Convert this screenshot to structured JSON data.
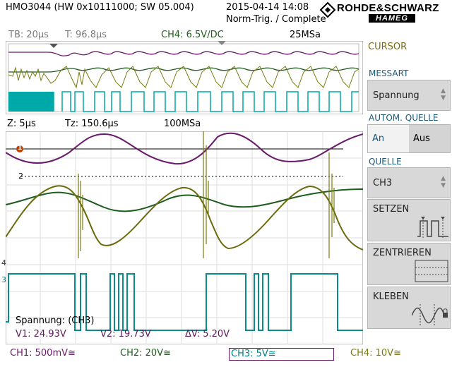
{
  "header": {
    "device": "HMO3044 (HW 0x10111000; SW 05.004)",
    "datetime": "2015-04-14 14:08",
    "trigger_status": "Norm-Trig. / Complete",
    "brand_top": "ROHDE&SCHWARZ",
    "brand_bottom": "HAMEG"
  },
  "overview": {
    "timebase": "TB: 20µs",
    "trigger_time": "T: 96.8µs",
    "trigger_source": "CH4: 6.5V/DC",
    "sample_rate": "25MSa"
  },
  "zoom": {
    "timebase": "Z: 5µs",
    "zoom_time": "Tz: 150.6µs",
    "sample_rate": "100MSa"
  },
  "markers": {
    "ref1": "1",
    "ch2": "2",
    "ch4": "4",
    "ch3": "3"
  },
  "measurement": {
    "title": "Spannung: (CH3)",
    "v1": "V1: 24.93V",
    "v2": "V2: 19.73V",
    "dv": "ΔV: 5.20V"
  },
  "side_menu": {
    "title": "CURSOR",
    "messart_label": "MESSART",
    "messart_value": "Spannung",
    "autom_label": "AUTOM. QUELLE",
    "autom_on": "An",
    "autom_off": "Aus",
    "quelle_label": "QUELLE",
    "quelle_value": "CH3",
    "setzen": "SETZEN",
    "zentrieren": "ZENTRIEREN",
    "kleben": "KLEBEN"
  },
  "footer": {
    "ch1": "CH1: 500mV≅",
    "ch2": "CH2: 20V≅",
    "ch3": "CH3: 5V≅",
    "ch4": "CH4: 10V≅"
  },
  "colors": {
    "ch1": "#6a1a6a",
    "ch2": "#1d5d1d",
    "ch3": "#008080",
    "ch4": "#7a7a10",
    "accent_label": "#1a5a7a"
  }
}
